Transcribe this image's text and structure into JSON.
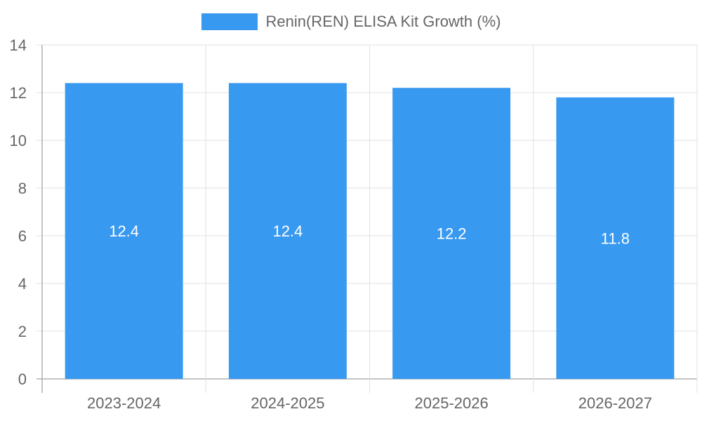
{
  "chart_data": {
    "type": "bar",
    "categories": [
      "2023-2024",
      "2024-2025",
      "2025-2026",
      "2026-2027"
    ],
    "series": [
      {
        "name": "Renin(REN) ELISA Kit Growth (%)",
        "values": [
          12.4,
          12.4,
          12.2,
          11.8
        ],
        "color": "#3899f0"
      }
    ],
    "data_labels": [
      "12.4",
      "12.4",
      "12.2",
      "11.8"
    ],
    "y_ticks": [
      "0",
      "2",
      "4",
      "6",
      "8",
      "10",
      "12",
      "14"
    ],
    "ylim": [
      0,
      14
    ],
    "title": "",
    "xlabel": "",
    "ylabel": "",
    "grid": true,
    "legend_position": "top-center",
    "colors": {
      "bar": "#3899f0",
      "grid": "#e1e1e1",
      "axis": "#b0b0b0",
      "tick_text": "#666666",
      "data_label_text": "#ffffff"
    }
  }
}
